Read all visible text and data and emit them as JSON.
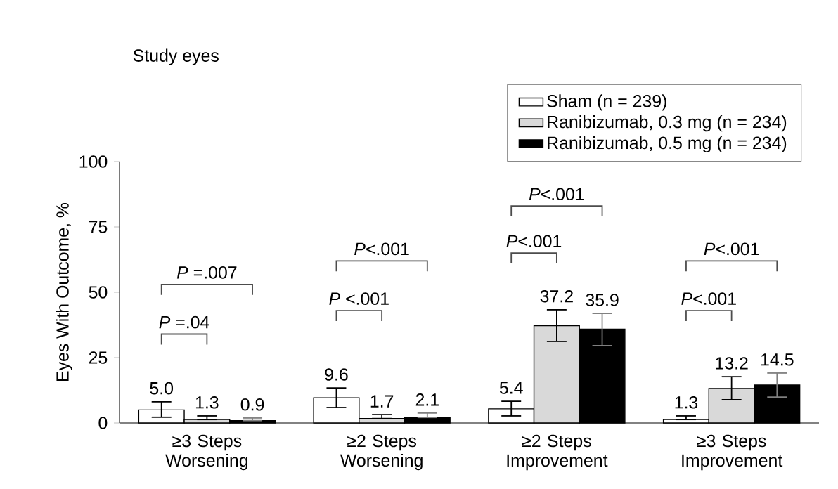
{
  "chart_data": {
    "type": "bar",
    "title": "Study eyes",
    "ylabel": "Eyes With Outcome, %",
    "categories": [
      "≥3 Steps Worsening",
      "≥2 Steps Worsening",
      "≥2 Steps Improvement",
      "≥3 Steps Improvement"
    ],
    "series": [
      {
        "name": "Sham (n = 239)",
        "color": "#ffffff",
        "values": [
          5.0,
          9.6,
          5.4,
          1.3
        ],
        "value_labels": [
          "5.0",
          "9.6",
          "5.4",
          "1.3"
        ],
        "errors": [
          [
            2.2,
            8.1
          ],
          [
            5.9,
            13.4
          ],
          [
            2.7,
            8.3
          ],
          [
            1.3,
            2.7
          ]
        ]
      },
      {
        "name": "Ranibizumab, 0.3 mg (n = 234)",
        "color": "#d9d9d9",
        "values": [
          1.3,
          1.7,
          37.2,
          13.2
        ],
        "value_labels": [
          "1.3",
          "1.7",
          "37.2",
          "13.2"
        ],
        "errors": [
          [
            1.3,
            2.7
          ],
          [
            1.7,
            3.2
          ],
          [
            31.2,
            43.3
          ],
          [
            8.9,
            17.7
          ]
        ]
      },
      {
        "name": "Ranibizumab, 0.5 mg (n = 234)",
        "color": "#000000",
        "values": [
          0.9,
          2.1,
          35.9,
          14.5
        ],
        "value_labels": [
          "0.9",
          "2.1",
          "35.9",
          "14.5"
        ],
        "errors": [
          [
            0.9,
            1.9
          ],
          [
            2.1,
            3.8
          ],
          [
            29.6,
            41.9
          ],
          [
            9.9,
            19.1
          ]
        ]
      }
    ],
    "ylim": [
      0,
      100
    ],
    "yticks": [
      0,
      25,
      50,
      75,
      100
    ],
    "legend": "top right",
    "annotations": [
      "*P* =.007",
      "*P* =.04",
      "*P*<.001",
      "*P* <.001",
      "*P*<.001",
      "*P*<.001",
      "*P*<.001",
      "*P*<.001"
    ]
  }
}
